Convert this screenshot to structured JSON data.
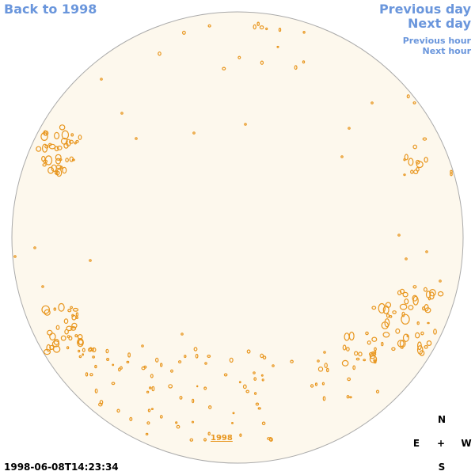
{
  "nav": {
    "back": "Back to 1998",
    "previous_day": "Previous day",
    "next_day": "Next day",
    "previous_hour": "Previous hour",
    "next_hour": "Next hour"
  },
  "compass": {
    "north": "N",
    "east": "E",
    "center": "+",
    "west": "W",
    "south": "S"
  },
  "timestamp": "1998-06-08T14:23:34",
  "year_label": "1998",
  "colors": {
    "disk": "#fdf8ed",
    "disk_edge": "#aaaaaa",
    "contour": "#e8961e",
    "link": "#6a96dc"
  }
}
